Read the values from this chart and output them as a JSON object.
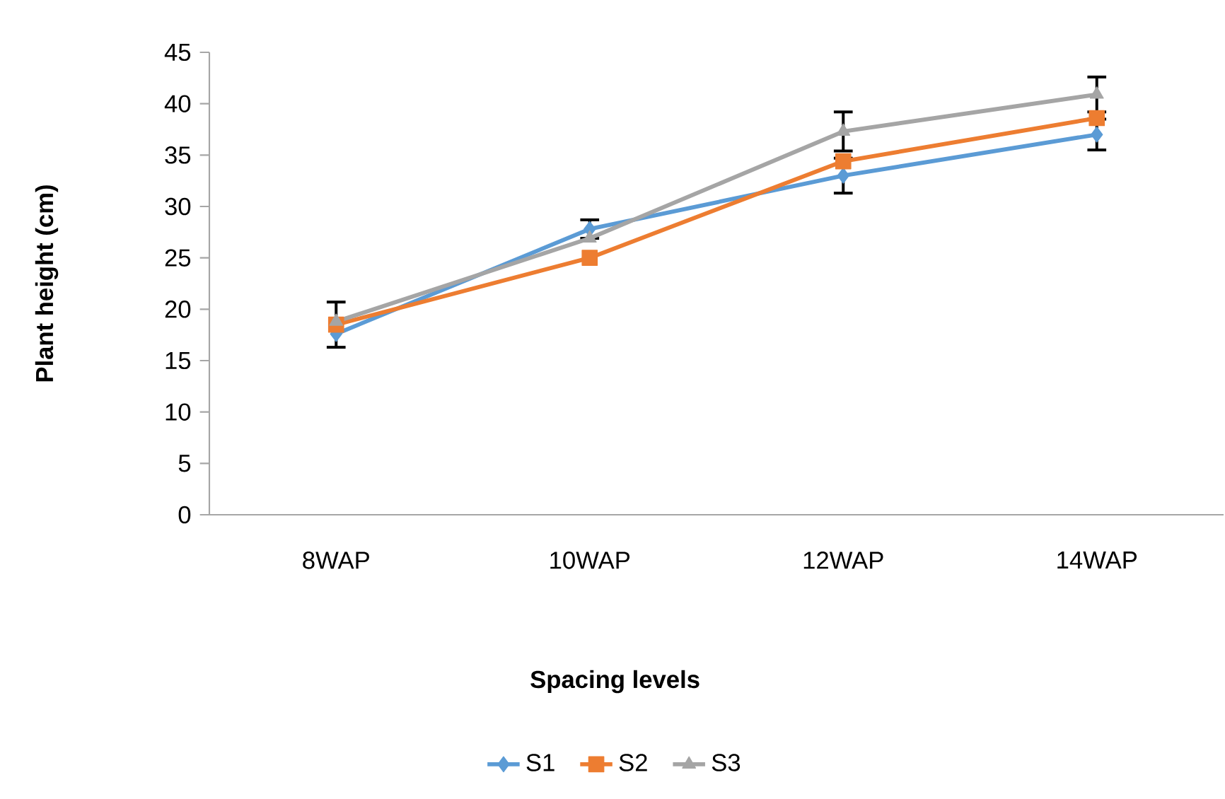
{
  "chart_data": {
    "type": "line",
    "xlabel": "Spacing levels",
    "ylabel": "Plant  height (cm)",
    "categories": [
      "8WAP",
      "10WAP",
      "12WAP",
      "14WAP"
    ],
    "series": [
      {
        "name": "S1",
        "color": "#5b9bd5",
        "marker": "diamond",
        "values": [
          17.6,
          27.8,
          33.0,
          37.0
        ],
        "errors": [
          null,
          0.9,
          1.7,
          1.5
        ]
      },
      {
        "name": "S2",
        "color": "#ed7d31",
        "marker": "square",
        "values": [
          18.5,
          25.0,
          34.4,
          38.6
        ],
        "errors": [
          2.2,
          null,
          null,
          null
        ]
      },
      {
        "name": "S3",
        "color": "#a5a5a5",
        "marker": "triangle",
        "values": [
          18.8,
          26.9,
          37.3,
          40.9
        ],
        "errors": [
          null,
          null,
          1.9,
          1.7
        ]
      }
    ],
    "ylim": [
      0,
      45
    ],
    "yticks": [
      0,
      5,
      10,
      15,
      20,
      25,
      30,
      35,
      40,
      45
    ],
    "grid": false,
    "legend": "bottom",
    "line_style": "solid"
  }
}
